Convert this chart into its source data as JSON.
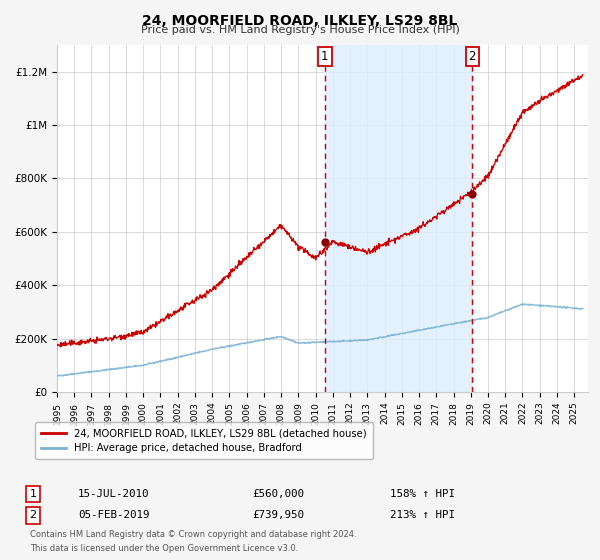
{
  "title": "24, MOORFIELD ROAD, ILKLEY, LS29 8BL",
  "subtitle": "Price paid vs. HM Land Registry's House Price Index (HPI)",
  "legend_line1": "24, MOORFIELD ROAD, ILKLEY, LS29 8BL (detached house)",
  "legend_line2": "HPI: Average price, detached house, Bradford",
  "sale1_label": "1",
  "sale1_date": "15-JUL-2010",
  "sale1_price": "£560,000",
  "sale1_hpi": "158% ↑ HPI",
  "sale1_year": 2010.54,
  "sale1_value": 560000,
  "sale2_label": "2",
  "sale2_date": "05-FEB-2019",
  "sale2_price": "£739,950",
  "sale2_hpi": "213% ↑ HPI",
  "sale2_year": 2019.09,
  "sale2_value": 739950,
  "footnote1": "Contains HM Land Registry data © Crown copyright and database right 2024.",
  "footnote2": "This data is licensed under the Open Government Licence v3.0.",
  "hpi_color": "#7ab3d4",
  "price_color": "#cc0000",
  "marker_color": "#8b0000",
  "shade_color": "#ddeeff",
  "dashed_color": "#cc0000",
  "grid_color": "#cccccc",
  "background_color": "#f5f5f5",
  "plot_bg": "#ffffff",
  "yticks": [
    0,
    200000,
    400000,
    600000,
    800000,
    1000000,
    1200000
  ],
  "ylabels": [
    "£0",
    "£200K",
    "£400K",
    "£600K",
    "£800K",
    "£1M",
    "£1.2M"
  ],
  "ylim": [
    0,
    1300000
  ],
  "xlim_start": 1995.0,
  "xlim_end": 2025.8
}
